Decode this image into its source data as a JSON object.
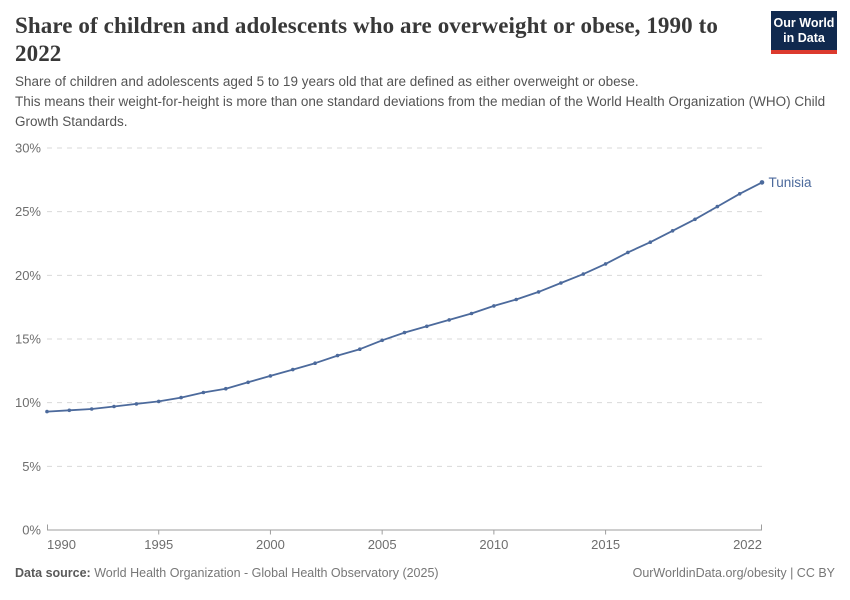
{
  "logo": {
    "line1": "Our World",
    "line2": "in Data",
    "bg": "#10294e",
    "accent": "#dc3a2e"
  },
  "chart_data": {
    "type": "line",
    "title": "Share of children and adolescents who are overweight or obese, 1990 to 2022",
    "subtitle_line1": "Share of children and adolescents aged 5 to 19 years old that are defined as either overweight or obese.",
    "subtitle_line2": "This means their weight-for-height is more than one standard deviations from the median of the World Health Organization (WHO) Child Growth Standards.",
    "xlabel": "",
    "ylabel": "",
    "xlim": [
      1990,
      2022
    ],
    "ylim": [
      0,
      30
    ],
    "x_ticks": [
      1990,
      1995,
      2000,
      2005,
      2010,
      2015,
      2022
    ],
    "y_ticks": [
      0,
      5,
      10,
      15,
      20,
      25,
      30
    ],
    "y_tick_suffix": "%",
    "grid": "horizontal-dashed",
    "legend": "end-of-line-label",
    "colors": {
      "gridline": "#d9d9d9",
      "axis": "#9e9e9e",
      "tick_label": "#6e6e6e",
      "series": "#4C6A9C"
    },
    "series": [
      {
        "name": "Tunisia",
        "color": "#4C6A9C",
        "x": [
          1990,
          1991,
          1992,
          1993,
          1994,
          1995,
          1996,
          1997,
          1998,
          1999,
          2000,
          2001,
          2002,
          2003,
          2004,
          2005,
          2006,
          2007,
          2008,
          2009,
          2010,
          2011,
          2012,
          2013,
          2014,
          2015,
          2016,
          2017,
          2018,
          2019,
          2020,
          2021,
          2022
        ],
        "values": [
          9.3,
          9.4,
          9.5,
          9.7,
          9.9,
          10.1,
          10.4,
          10.8,
          11.1,
          11.6,
          12.1,
          12.6,
          13.1,
          13.7,
          14.2,
          14.9,
          15.5,
          16.0,
          16.5,
          17.0,
          17.6,
          18.1,
          18.7,
          19.4,
          20.1,
          20.9,
          21.8,
          22.6,
          23.5,
          24.4,
          25.4,
          26.4,
          27.3
        ]
      }
    ]
  },
  "footer": {
    "datasource_label": "Data source:",
    "datasource_text": " World Health Organization - Global Health Observatory (2025)",
    "link_text": "OurWorldinData.org/obesity | CC BY"
  }
}
